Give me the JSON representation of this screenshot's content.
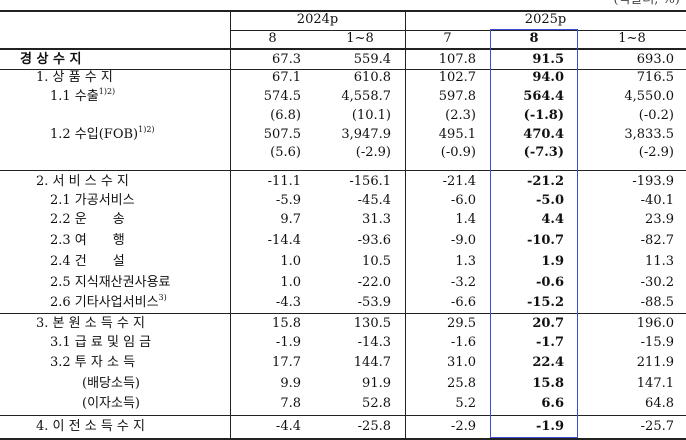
{
  "unit": "(억달러, %)",
  "header": {
    "years": [
      "2024p",
      "2025p"
    ],
    "months": [
      "8",
      "1~8",
      "7",
      "8",
      "1~8"
    ]
  },
  "table": {
    "rows": [
      {
        "label": "경 상 수 지",
        "cells": [
          "67.3",
          "559.4",
          "107.8",
          "91.5",
          "693.0"
        ]
      },
      {
        "label": "1. 상 품 수 지",
        "cells": [
          "67.1",
          "610.8",
          "102.7",
          "94.0",
          "716.5"
        ]
      },
      {
        "label": "1.1 수출",
        "note": "1)2)",
        "cells": [
          "574.5",
          "4,558.7",
          "597.8",
          "564.4",
          "4,550.0"
        ]
      },
      {
        "cells": [
          "(6.8)",
          "(10.1)",
          "(2.3)",
          "(-1.8)",
          "(-0.2)"
        ]
      },
      {
        "label": "1.2 수입(FOB)",
        "note": "1)2)",
        "cells": [
          "507.5",
          "3,947.9",
          "495.1",
          "470.4",
          "3,833.5"
        ]
      },
      {
        "cells": [
          "(5.6)",
          "(-2.9)",
          "(-0.9)",
          "(-7.3)",
          "(-2.9)"
        ]
      },
      {
        "label": "2. 서 비 스 수 지",
        "cells": [
          "-11.1",
          "-156.1",
          "-21.4",
          "-21.2",
          "-193.9"
        ]
      },
      {
        "label": "2.1 가공서비스",
        "cells": [
          "-5.9",
          "-45.4",
          "-6.0",
          "-5.0",
          "-40.1"
        ]
      },
      {
        "label": "2.2 운　　송",
        "cells": [
          "9.7",
          "31.3",
          "1.4",
          "4.4",
          "23.9"
        ]
      },
      {
        "label": "2.3 여　　행",
        "cells": [
          "-14.4",
          "-93.6",
          "-9.0",
          "-10.7",
          "-82.7"
        ]
      },
      {
        "label": "2.4 건　　설",
        "cells": [
          "1.0",
          "10.5",
          "1.3",
          "1.9",
          "11.3"
        ]
      },
      {
        "label": "2.5 지식재산권사용료",
        "cells": [
          "1.0",
          "-22.0",
          "-3.2",
          "-0.6",
          "-30.2"
        ]
      },
      {
        "label": "2.6 기타사업서비스",
        "note": "3)",
        "cells": [
          "-4.3",
          "-53.9",
          "-6.6",
          "-15.2",
          "-88.5"
        ]
      },
      {
        "label": "3. 본 원 소 득 수 지",
        "cells": [
          "15.8",
          "130.5",
          "29.5",
          "20.7",
          "196.0"
        ]
      },
      {
        "label": "3.1 급 료 및 임 금",
        "cells": [
          "-1.9",
          "-14.3",
          "-1.6",
          "-1.7",
          "-15.9"
        ]
      },
      {
        "label": "3.2 투 자 소 득",
        "cells": [
          "17.7",
          "144.7",
          "31.0",
          "22.4",
          "211.9"
        ]
      },
      {
        "label": "(배당소득)",
        "cells": [
          "9.9",
          "91.9",
          "25.8",
          "15.8",
          "147.1"
        ]
      },
      {
        "label": "(이자소득)",
        "cells": [
          "7.8",
          "52.8",
          "5.2",
          "6.6",
          "64.8"
        ]
      },
      {
        "label": "4. 이 전 소 득 수 지",
        "cells": [
          "-4.4",
          "-25.8",
          "-2.9",
          "-1.9",
          "-25.7"
        ]
      }
    ]
  }
}
